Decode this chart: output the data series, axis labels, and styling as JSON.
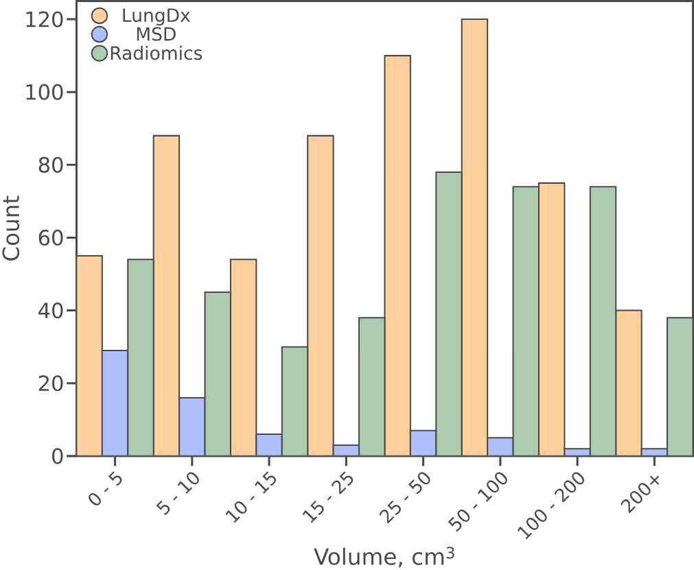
{
  "chart_data": {
    "type": "bar",
    "xlabel": "Volume, cm$^{3}$",
    "ylabel": "Count",
    "categories": [
      "0 - 5",
      "5 - 10",
      "10 - 15",
      "15 - 25",
      "25 - 50",
      "50 - 100",
      "100 - 200",
      "200+"
    ],
    "series": [
      {
        "name": "LungDx",
        "color": "#ffcf9e",
        "values": [
          55,
          88,
          54,
          88,
          110,
          120,
          75,
          40
        ]
      },
      {
        "name": "MSD",
        "color": "#aebffc",
        "values": [
          29,
          16,
          6,
          3,
          7,
          5,
          2,
          2
        ]
      },
      {
        "name": "Radiomics",
        "color": "#adcbb1",
        "values": [
          54,
          45,
          30,
          38,
          78,
          74,
          74,
          38
        ]
      }
    ],
    "ylim": [
      0,
      125
    ],
    "yticks": [
      0,
      20,
      40,
      60,
      80,
      100,
      120
    ],
    "grid": false,
    "legend": "top left"
  }
}
